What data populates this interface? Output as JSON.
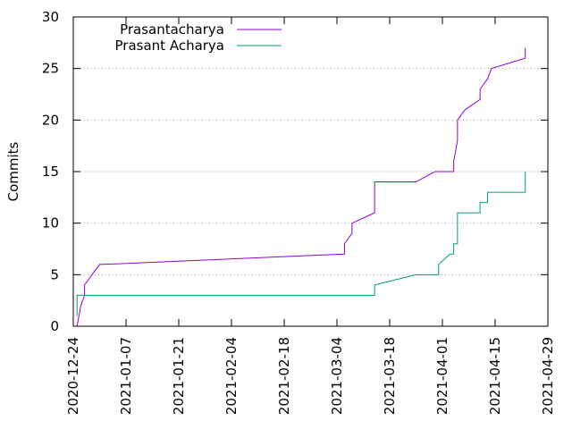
{
  "chart_data": {
    "type": "line",
    "title": "",
    "xlabel": "",
    "ylabel": "Commits",
    "x_axis": {
      "scale": "date",
      "range": [
        "2020-12-24",
        "2021-04-29"
      ],
      "ticks": [
        "2020-12-24",
        "2021-01-07",
        "2021-01-21",
        "2021-02-04",
        "2021-02-18",
        "2021-03-04",
        "2021-03-18",
        "2021-04-01",
        "2021-04-15",
        "2021-04-29"
      ]
    },
    "y_axis": {
      "range": [
        0,
        30
      ],
      "ticks": [
        0,
        5,
        10,
        15,
        20,
        25,
        30
      ]
    },
    "grid": {
      "y": true,
      "x": false,
      "style": "dotted"
    },
    "legend": {
      "placement": "top-left"
    },
    "series": [
      {
        "name": "Prasantacharya",
        "color": "#9400d3",
        "points": [
          [
            "2020-12-25",
            0
          ],
          [
            "2020-12-26",
            2
          ],
          [
            "2020-12-27",
            3
          ],
          [
            "2020-12-27",
            4
          ],
          [
            "2020-12-31",
            6
          ],
          [
            "2021-01-01",
            6
          ],
          [
            "2021-03-06",
            7
          ],
          [
            "2021-03-06",
            8
          ],
          [
            "2021-03-08",
            9
          ],
          [
            "2021-03-08",
            10
          ],
          [
            "2021-03-14",
            11
          ],
          [
            "2021-03-14",
            14
          ],
          [
            "2021-03-25",
            14
          ],
          [
            "2021-03-30",
            15
          ],
          [
            "2021-04-04",
            15
          ],
          [
            "2021-04-04",
            16
          ],
          [
            "2021-04-05",
            18
          ],
          [
            "2021-04-05",
            20
          ],
          [
            "2021-04-07",
            21
          ],
          [
            "2021-04-11",
            22
          ],
          [
            "2021-04-11",
            23
          ],
          [
            "2021-04-13",
            24
          ],
          [
            "2021-04-14",
            25
          ],
          [
            "2021-04-23",
            26
          ],
          [
            "2021-04-23",
            27
          ]
        ]
      },
      {
        "name": "Prasant Acharya",
        "color": "#009e73",
        "points": [
          [
            "2020-12-25",
            1
          ],
          [
            "2020-12-25",
            3
          ],
          [
            "2020-12-26",
            3
          ],
          [
            "2021-03-14",
            3
          ],
          [
            "2021-03-14",
            4
          ],
          [
            "2021-03-25",
            5
          ],
          [
            "2021-03-31",
            5
          ],
          [
            "2021-03-31",
            6
          ],
          [
            "2021-04-03",
            7
          ],
          [
            "2021-04-04",
            7
          ],
          [
            "2021-04-04",
            8
          ],
          [
            "2021-04-05",
            8
          ],
          [
            "2021-04-05",
            11
          ],
          [
            "2021-04-11",
            11
          ],
          [
            "2021-04-11",
            12
          ],
          [
            "2021-04-13",
            12
          ],
          [
            "2021-04-13",
            13
          ],
          [
            "2021-04-22",
            13
          ],
          [
            "2021-04-23",
            13
          ],
          [
            "2021-04-23",
            15
          ]
        ]
      }
    ]
  }
}
